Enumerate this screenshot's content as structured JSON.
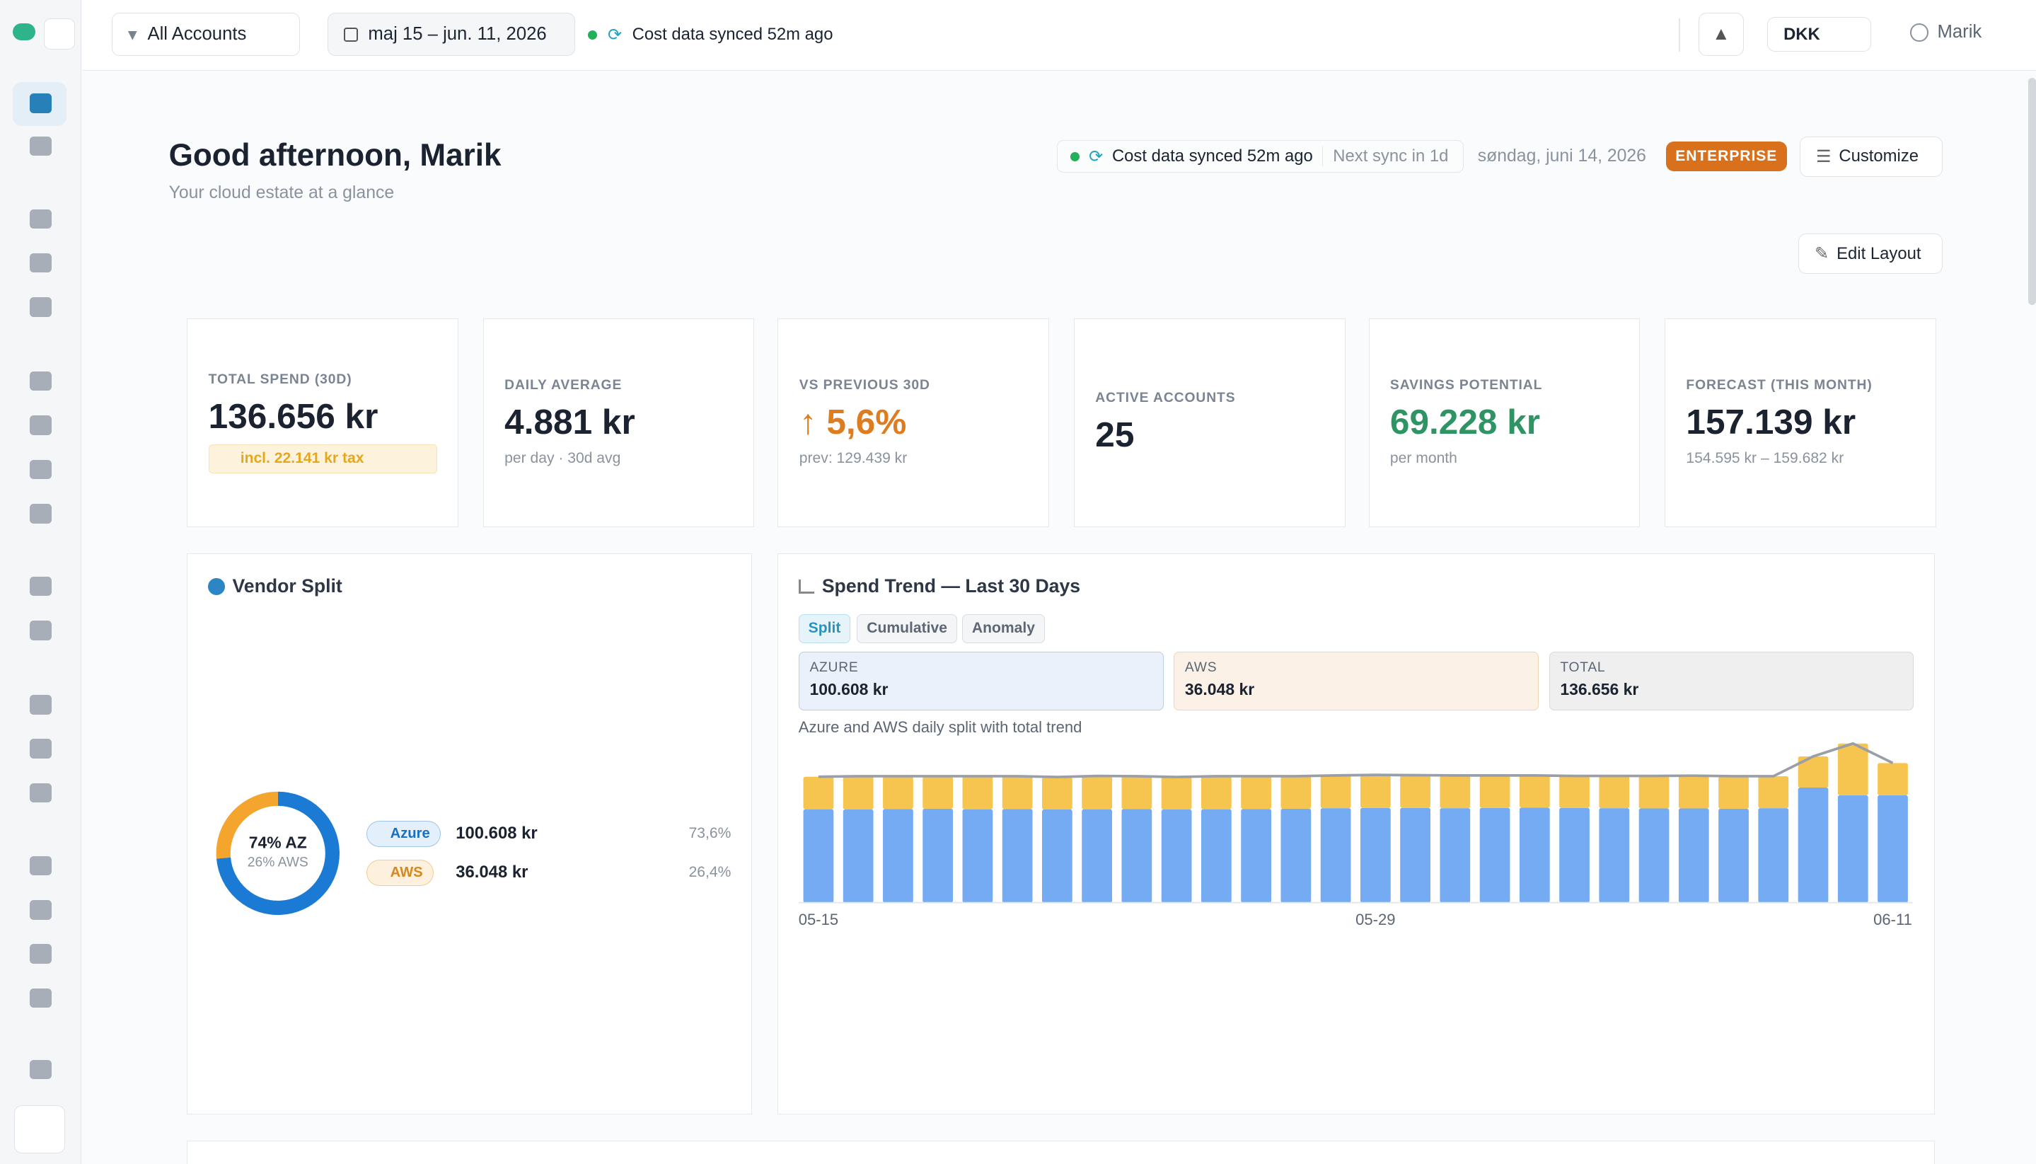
{
  "topbar": {
    "account_filter": "All Accounts",
    "date_range": "maj 15 – jun. 11, 2026",
    "sync_status": "Cost data synced 52m ago",
    "currency": "DKK",
    "user": "Marik"
  },
  "header": {
    "title": "Good afternoon, Marik",
    "subtitle": "Your cloud estate at a glance",
    "sync_status": "Cost data synced 52m ago",
    "next_sync": "Next sync in 1d",
    "date": "søndag, juni 14, 2026",
    "plan": "ENTERPRISE",
    "customize": "Customize",
    "edit_layout": "Edit Layout"
  },
  "kpis": [
    {
      "label": "TOTAL SPEND (30D)",
      "value": "136.656 kr",
      "note": "incl. 22.141 kr tax"
    },
    {
      "label": "DAILY AVERAGE",
      "value": "4.881 kr",
      "note": "per day · 30d avg"
    },
    {
      "label": "VS PREVIOUS 30D",
      "value": "↑ 5,6%",
      "note": "prev: 129.439 kr"
    },
    {
      "label": "ACTIVE ACCOUNTS",
      "value": "25"
    },
    {
      "label": "SAVINGS POTENTIAL",
      "value": "69.228 kr",
      "note": "per month"
    },
    {
      "label": "FORECAST (THIS MONTH)",
      "value": "157.139 kr",
      "note": "154.595 kr – 159.682 kr"
    }
  ],
  "chart_data": [
    {
      "type": "pie",
      "title": "Vendor Split",
      "center_label": "74% AZ",
      "center_sublabel": "26% AWS",
      "categories": [
        "Azure",
        "AWS"
      ],
      "values": [
        73.6,
        26.4
      ],
      "value_labels": [
        "73,6%",
        "26,4%"
      ],
      "amounts": [
        "100.608 kr",
        "36.048 kr"
      ],
      "colors": [
        "#1b7bd4",
        "#f4a52e"
      ]
    },
    {
      "type": "bar",
      "stacked": true,
      "title": "Spend Trend — Last 30 Days",
      "tabs": [
        "Split",
        "Cumulative",
        "Anomaly"
      ],
      "caption": "Azure and AWS daily split with total trend",
      "categories": [
        "05-15",
        null,
        null,
        null,
        null,
        null,
        null,
        null,
        null,
        null,
        null,
        null,
        null,
        null,
        "05-29",
        null,
        null,
        null,
        null,
        null,
        null,
        null,
        null,
        null,
        null,
        null,
        null,
        "06-11"
      ],
      "series": [
        {
          "name": "AZURE",
          "total_label": "100.608 kr",
          "color": "#74abf3",
          "values": [
            3540,
            3530,
            3550,
            3560,
            3540,
            3550,
            3530,
            3540,
            3550,
            3530,
            3540,
            3550,
            3560,
            3580,
            3590,
            3590,
            3580,
            3590,
            3600,
            3590,
            3580,
            3570,
            3570,
            3560,
            3580,
            4360,
            4070,
            4070
          ]
        },
        {
          "name": "AWS",
          "total_label": "36.048 kr",
          "color": "#f6c54f",
          "values": [
            1230,
            1260,
            1240,
            1230,
            1250,
            1240,
            1230,
            1260,
            1240,
            1230,
            1250,
            1240,
            1230,
            1240,
            1250,
            1240,
            1240,
            1230,
            1220,
            1210,
            1220,
            1230,
            1240,
            1230,
            1210,
            1180,
            1960,
            1220
          ]
        },
        {
          "name": "TOTAL",
          "total_label": "136.656 kr",
          "type": "line",
          "color": "#9a9ea6",
          "values": [
            4770,
            4790,
            4790,
            4790,
            4790,
            4790,
            4760,
            4800,
            4790,
            4760,
            4790,
            4790,
            4790,
            4820,
            4840,
            4830,
            4820,
            4820,
            4820,
            4800,
            4800,
            4800,
            4810,
            4790,
            4790,
            5540,
            6030,
            5290
          ]
        }
      ],
      "ylim": [
        0,
        6200
      ]
    }
  ]
}
